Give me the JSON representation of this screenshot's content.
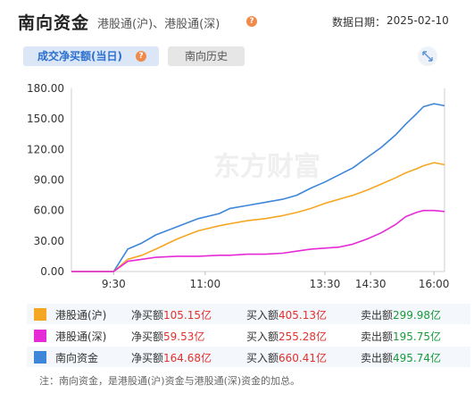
{
  "header": {
    "title": "南向资金",
    "subtitle": "港股通(沪)、港股通(深)",
    "help_icon": "?",
    "date_label": "数据日期：",
    "date_value": "2025-02-10"
  },
  "tabs": [
    {
      "label": "成交净买额(当日)",
      "active": true
    },
    {
      "label": "南向历史",
      "active": false
    }
  ],
  "icons": {
    "expand": "expand-arrows-icon",
    "help": "question-mark-icon"
  },
  "watermark": "东方财富",
  "chart_data": {
    "type": "line",
    "y_ticks": [
      "180.00",
      "150.00",
      "120.00",
      "90.00",
      "60.00",
      "30.00",
      "0.00"
    ],
    "ylim": [
      0,
      180
    ],
    "x_ticks": [
      "9:30",
      "11:00",
      "13:30",
      "14:30",
      "16:00"
    ],
    "series": [
      {
        "name": "南向资金",
        "color": "#3d86d9",
        "points": [
          [
            0,
            0
          ],
          [
            0.12,
            0
          ],
          [
            0.16,
            22
          ],
          [
            0.2,
            28
          ],
          [
            0.24,
            36
          ],
          [
            0.3,
            44
          ],
          [
            0.36,
            52
          ],
          [
            0.42,
            57
          ],
          [
            0.45,
            62
          ],
          [
            0.5,
            65
          ],
          [
            0.55,
            68
          ],
          [
            0.6,
            71
          ],
          [
            0.64,
            75
          ],
          [
            0.68,
            82
          ],
          [
            0.72,
            88
          ],
          [
            0.76,
            95
          ],
          [
            0.8,
            102
          ],
          [
            0.84,
            112
          ],
          [
            0.88,
            122
          ],
          [
            0.92,
            134
          ],
          [
            0.95,
            145
          ],
          [
            0.98,
            155
          ],
          [
            1.0,
            162
          ],
          [
            1.03,
            165
          ],
          [
            1.06,
            163
          ]
        ]
      },
      {
        "name": "港股通(沪)",
        "color": "#f5a623",
        "points": [
          [
            0,
            0
          ],
          [
            0.12,
            0
          ],
          [
            0.16,
            12
          ],
          [
            0.2,
            16
          ],
          [
            0.24,
            22
          ],
          [
            0.3,
            32
          ],
          [
            0.36,
            40
          ],
          [
            0.42,
            45
          ],
          [
            0.45,
            47
          ],
          [
            0.5,
            50
          ],
          [
            0.55,
            52
          ],
          [
            0.6,
            55
          ],
          [
            0.64,
            58
          ],
          [
            0.68,
            62
          ],
          [
            0.72,
            67
          ],
          [
            0.76,
            71
          ],
          [
            0.8,
            75
          ],
          [
            0.84,
            80
          ],
          [
            0.88,
            86
          ],
          [
            0.92,
            92
          ],
          [
            0.95,
            97
          ],
          [
            0.98,
            101
          ],
          [
            1.0,
            104
          ],
          [
            1.03,
            107
          ],
          [
            1.06,
            105
          ]
        ]
      },
      {
        "name": "港股通(深)",
        "color": "#e62ad6",
        "points": [
          [
            0,
            0
          ],
          [
            0.12,
            0
          ],
          [
            0.16,
            10
          ],
          [
            0.2,
            12
          ],
          [
            0.24,
            14
          ],
          [
            0.3,
            15
          ],
          [
            0.36,
            15
          ],
          [
            0.42,
            16
          ],
          [
            0.45,
            16
          ],
          [
            0.5,
            17
          ],
          [
            0.55,
            17
          ],
          [
            0.6,
            18
          ],
          [
            0.64,
            20
          ],
          [
            0.68,
            22
          ],
          [
            0.72,
            23
          ],
          [
            0.76,
            24
          ],
          [
            0.8,
            27
          ],
          [
            0.84,
            32
          ],
          [
            0.88,
            38
          ],
          [
            0.92,
            46
          ],
          [
            0.95,
            54
          ],
          [
            0.98,
            58
          ],
          [
            1.0,
            60
          ],
          [
            1.03,
            60
          ],
          [
            1.06,
            59
          ]
        ]
      }
    ]
  },
  "legend": [
    {
      "name": "港股通(沪)",
      "color": "#f5a623",
      "net_label": "净买额",
      "net_value": "105.15亿",
      "buy_label": "买入额",
      "buy_value": "405.13亿",
      "sell_label": "卖出额",
      "sell_value": "299.98亿"
    },
    {
      "name": "港股通(深)",
      "color": "#e62ad6",
      "net_label": "净买额",
      "net_value": "59.53亿",
      "buy_label": "买入额",
      "buy_value": "255.28亿",
      "sell_label": "卖出额",
      "sell_value": "195.75亿"
    },
    {
      "name": "南向资金",
      "color": "#3d86d9",
      "net_label": "净买额",
      "net_value": "164.68亿",
      "buy_label": "买入额",
      "buy_value": "660.41亿",
      "sell_label": "卖出额",
      "sell_value": "495.74亿"
    }
  ],
  "note": "注：南向资金，是港股通(沪)资金与港股通(深)资金的加总。"
}
